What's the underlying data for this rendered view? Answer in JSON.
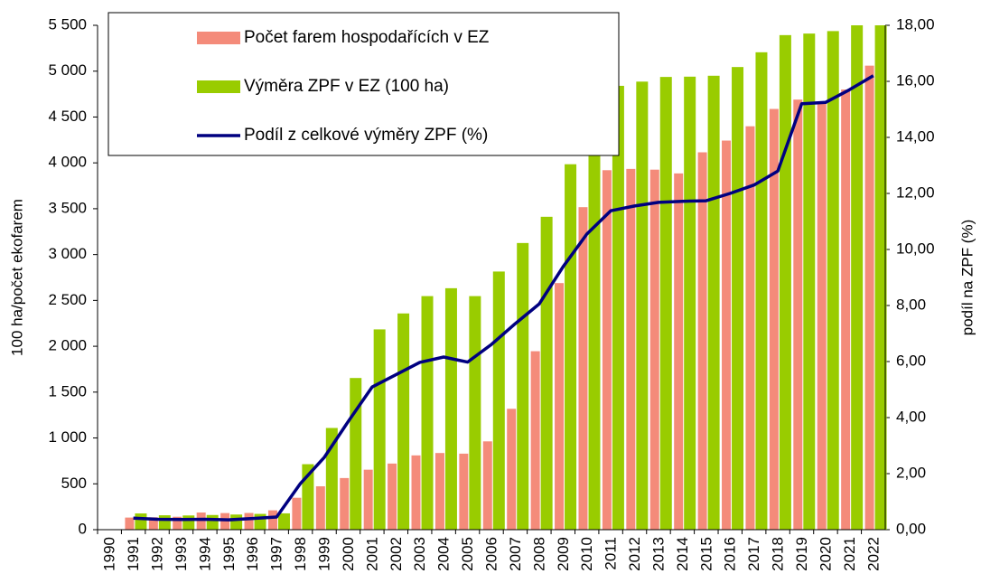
{
  "chart_data": {
    "type": "bar",
    "y_label": "100 ha/počet ekofarem",
    "y2_label": "podíl na ZPF (%)",
    "categories": [
      "1990",
      "1991",
      "1992",
      "1993",
      "1994",
      "1995",
      "1996",
      "1997",
      "1998",
      "1999",
      "2000",
      "2001",
      "2002",
      "2003",
      "2004",
      "2005",
      "2006",
      "2007",
      "2008",
      "2009",
      "2010",
      "2011",
      "2012",
      "2013",
      "2014",
      "2015",
      "2016",
      "2017",
      "2018",
      "2019",
      "2020",
      "2021",
      "2022"
    ],
    "series": [
      {
        "name": "Počet farem hospodařících v EZ",
        "color": "#f48b7a",
        "type": "bar",
        "values": [
          3,
          132,
          135,
          141,
          187,
          181,
          182,
          211,
          348,
          473,
          563,
          654,
          721,
          810,
          836,
          829,
          963,
          1318,
          1946,
          2689,
          3517,
          3920,
          3934,
          3926,
          3885,
          4115,
          4243,
          4399,
          4588,
          4690,
          4670,
          4800,
          5060
        ]
      },
      {
        "name": "Výměra ZPF v EZ (100 ha)",
        "color": "#99cc00",
        "type": "bar",
        "values": [
          5,
          177,
          157,
          155,
          160,
          165,
          172,
          178,
          714,
          1109,
          1654,
          2184,
          2358,
          2547,
          2633,
          2547,
          2815,
          3126,
          3412,
          3985,
          4350,
          4840,
          4886,
          4937,
          4940,
          4950,
          5045,
          5206,
          5393,
          5410,
          5437,
          5500,
          5500
        ]
      },
      {
        "name": "Podíl z celkové výměry ZPF (%)",
        "color": "#000080",
        "type": "line",
        "axis": "y2",
        "values": [
          null,
          0.41,
          0.37,
          0.36,
          0.37,
          0.35,
          0.4,
          0.45,
          1.65,
          2.58,
          3.86,
          5.09,
          5.53,
          5.97,
          6.16,
          5.98,
          6.61,
          7.35,
          8.05,
          9.38,
          10.55,
          11.38,
          11.55,
          11.68,
          11.72,
          11.74,
          12.0,
          12.3,
          12.8,
          15.2,
          15.25,
          15.7,
          16.2
        ]
      }
    ],
    "ylim": [
      0,
      5500
    ],
    "yticks": [
      0,
      500,
      {
        "value": 1000,
        "label": "1 000"
      },
      {
        "value": 1500,
        "label": "1 500"
      },
      {
        "value": 2000,
        "label": "2 000"
      },
      {
        "value": 2500,
        "label": "2 500"
      },
      {
        "value": 3000,
        "label": "3 000"
      },
      {
        "value": 3500,
        "label": "3 500"
      },
      {
        "value": 4000,
        "label": "4 000"
      },
      {
        "value": 4500,
        "label": "4 500"
      },
      {
        "value": 5000,
        "label": "5 000"
      },
      {
        "value": 5500,
        "label": "5 500"
      }
    ],
    "y2lim": [
      0,
      18
    ],
    "y2ticks": [
      {
        "value": 0,
        "label": "0,00"
      },
      {
        "value": 2,
        "label": "2,00"
      },
      {
        "value": 4,
        "label": "4,00"
      },
      {
        "value": 6,
        "label": "6,00"
      },
      {
        "value": 8,
        "label": "8,00"
      },
      {
        "value": 10,
        "label": "10,00"
      },
      {
        "value": 12,
        "label": "12,00"
      },
      {
        "value": 14,
        "label": "14,00"
      },
      {
        "value": 16,
        "label": "16,00"
      },
      {
        "value": 18,
        "label": "18,00"
      }
    ],
    "legend": "top-left"
  }
}
